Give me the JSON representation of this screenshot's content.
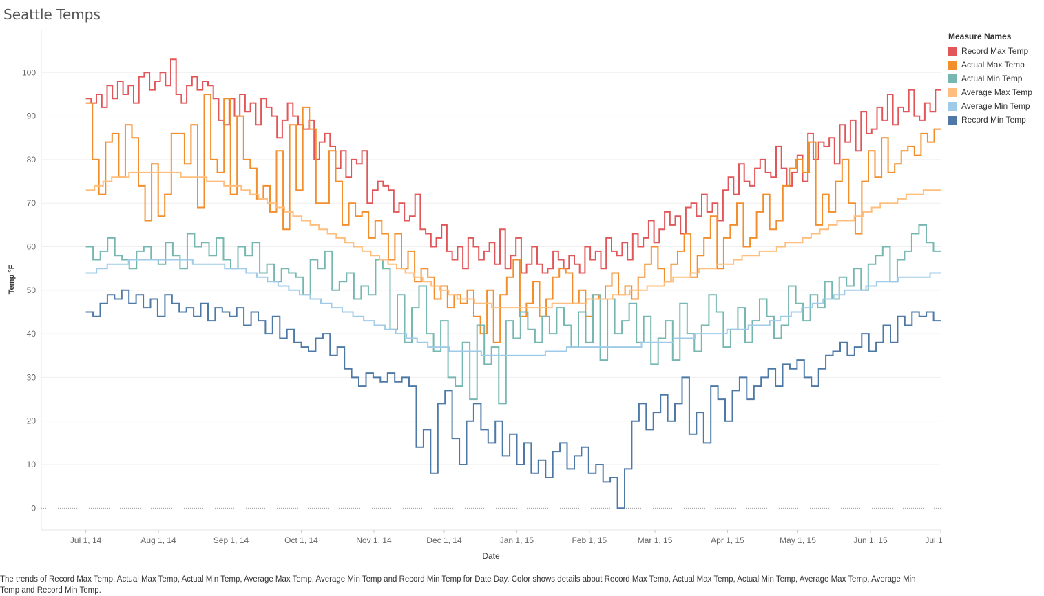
{
  "chart_data": {
    "type": "line",
    "title": "Seattle Temps",
    "xlabel": "Date",
    "ylabel": "Temp °F",
    "ylim": [
      -5,
      110
    ],
    "y_ticks": [
      0,
      10,
      20,
      30,
      40,
      50,
      60,
      70,
      80,
      90,
      100
    ],
    "x_ticks": [
      "Jul 1, 14",
      "Aug 1, 14",
      "Sep 1, 14",
      "Oct 1, 14",
      "Nov 1, 14",
      "Dec 1, 14",
      "Jan 1, 15",
      "Feb 1, 15",
      "Mar 1, 15",
      "Apr 1, 15",
      "May 1, 15",
      "Jun 1, 15",
      "Jul 1, 15"
    ],
    "x_tick_days": [
      0,
      31,
      62,
      92,
      123,
      153,
      184,
      215,
      243,
      274,
      304,
      335,
      365
    ],
    "x_range_days": [
      -19,
      365
    ],
    "step_days": 3,
    "line_style": "step",
    "legend": {
      "title": "Measure Names",
      "position": "right"
    },
    "grid": true,
    "series": [
      {
        "name": "Record Max Temp",
        "color": "#e15759",
        "start_day": 0,
        "values": [
          94,
          93,
          95,
          92,
          97,
          94,
          98,
          95,
          97,
          93,
          99,
          100,
          96,
          98,
          100,
          97,
          103,
          95,
          93,
          97,
          99,
          96,
          98,
          97,
          94,
          89,
          88,
          94,
          90,
          95,
          91,
          93,
          88,
          94,
          92,
          90,
          85,
          89,
          93,
          90,
          88,
          87,
          89,
          80,
          84,
          86,
          83,
          78,
          82,
          76,
          80,
          79,
          82,
          70,
          73,
          75,
          74,
          73,
          68,
          70,
          66,
          67,
          72,
          64,
          63,
          60,
          62,
          65,
          59,
          57,
          60,
          55,
          62,
          60,
          57,
          59,
          61,
          56,
          64,
          55,
          58,
          62,
          54,
          56,
          60,
          56,
          54,
          55,
          59,
          57,
          55,
          58,
          56,
          54,
          60,
          57,
          59,
          55,
          62,
          59,
          58,
          61,
          57,
          63,
          60,
          62,
          66,
          61,
          64,
          68,
          65,
          67,
          63,
          69,
          70,
          67,
          72,
          68,
          70,
          66,
          73,
          76,
          72,
          79,
          75,
          74,
          78,
          80,
          77,
          76,
          83,
          78,
          74,
          77,
          81,
          75,
          86,
          80,
          84,
          83,
          85,
          79,
          88,
          84,
          89,
          82,
          91,
          86,
          87,
          92,
          89,
          95,
          88,
          92,
          91,
          96,
          90,
          89,
          93,
          91,
          96
        ]
      },
      {
        "name": "Actual Max Temp",
        "color": "#f28e2b",
        "start_day": 0,
        "values": [
          93,
          80,
          72,
          84,
          86,
          76,
          88,
          85,
          74,
          66,
          79,
          67,
          72,
          86,
          86,
          79,
          88,
          69,
          95,
          80,
          77,
          94,
          72,
          90,
          80,
          78,
          71,
          74,
          68,
          82,
          64,
          88,
          73,
          92,
          87,
          70,
          70,
          82,
          75,
          65,
          70,
          67,
          68,
          62,
          66,
          63,
          57,
          63,
          55,
          59,
          52,
          55,
          53,
          48,
          51,
          46,
          49,
          47,
          50,
          44,
          40,
          50,
          38,
          49,
          53,
          57,
          44,
          47,
          52,
          44,
          48,
          53,
          55,
          54,
          47,
          50,
          44,
          49,
          48,
          51,
          54,
          49,
          51,
          48,
          53,
          56,
          60,
          55,
          52,
          56,
          59,
          63,
          53,
          58,
          62,
          67,
          55,
          62,
          65,
          70,
          60,
          62,
          68,
          72,
          64,
          66,
          74,
          78,
          80,
          77,
          84,
          65,
          72,
          68,
          75,
          80,
          70,
          63,
          75,
          82,
          76,
          85,
          77,
          79,
          82,
          83,
          81,
          86,
          84,
          87
        ]
      },
      {
        "name": "Actual Min Temp",
        "color": "#76b7b2",
        "start_day": 0,
        "values": [
          60,
          57,
          59,
          62,
          58,
          57,
          55,
          59,
          60,
          57,
          56,
          61,
          58,
          55,
          63,
          60,
          61,
          58,
          62,
          57,
          55,
          60,
          58,
          61,
          54,
          56,
          52,
          55,
          54,
          53,
          49,
          57,
          55,
          59,
          50,
          52,
          54,
          48,
          51,
          49,
          57,
          55,
          41,
          49,
          38,
          46,
          51,
          40,
          36,
          43,
          30,
          28,
          38,
          25,
          42,
          33,
          37,
          24,
          43,
          39,
          45,
          41,
          38,
          44,
          40,
          46,
          42,
          37,
          45,
          38,
          49,
          34,
          48,
          40,
          43,
          47,
          38,
          44,
          33,
          39,
          43,
          34,
          47,
          40,
          36,
          42,
          49,
          45,
          37,
          41,
          46,
          38,
          43,
          48,
          44,
          39,
          42,
          51,
          47,
          43,
          49,
          46,
          52,
          48,
          53,
          51,
          55,
          50,
          56,
          58,
          60,
          52,
          57,
          59,
          63,
          65,
          61,
          59
        ]
      },
      {
        "name": "Average Max Temp",
        "color": "#ffbe7d",
        "start_day": 0,
        "values": [
          73,
          74,
          75,
          76,
          76,
          77,
          77,
          77,
          77,
          77,
          77,
          76,
          76,
          76,
          75,
          75,
          74,
          74,
          73,
          72,
          71,
          70,
          69,
          68,
          67,
          66,
          65,
          64,
          63,
          62,
          61,
          60,
          59,
          58,
          57,
          56,
          55,
          54,
          53,
          52,
          51,
          50,
          49,
          48,
          48,
          47,
          47,
          46,
          46,
          46,
          46,
          46,
          46,
          46,
          47,
          47,
          47,
          47,
          48,
          48,
          48,
          49,
          49,
          50,
          50,
          51,
          51,
          52,
          53,
          53,
          54,
          55,
          55,
          56,
          56,
          57,
          58,
          58,
          59,
          59,
          60,
          61,
          61,
          62,
          63,
          64,
          65,
          66,
          66,
          67,
          68,
          69,
          70,
          70,
          71,
          72,
          72,
          73,
          73
        ]
      },
      {
        "name": "Average Min Temp",
        "color": "#a0cbe8",
        "start_day": 0,
        "values": [
          54,
          55,
          56,
          56,
          57,
          57,
          57,
          57,
          57,
          57,
          56,
          56,
          56,
          55,
          55,
          54,
          53,
          52,
          51,
          50,
          49,
          48,
          47,
          46,
          45,
          44,
          43,
          42,
          41,
          40,
          39,
          38,
          37,
          37,
          36,
          36,
          36,
          35,
          35,
          35,
          35,
          35,
          35,
          36,
          36,
          37,
          37,
          37,
          37,
          37,
          37,
          37,
          38,
          38,
          38,
          39,
          39,
          40,
          40,
          40,
          41,
          41,
          42,
          42,
          43,
          44,
          45,
          46,
          47,
          48,
          49,
          50,
          50,
          51,
          52,
          52,
          53,
          53,
          53,
          54
        ]
      },
      {
        "name": "Record Min Temp",
        "color": "#4e79a7",
        "start_day": 0,
        "values": [
          45,
          44,
          47,
          49,
          48,
          50,
          47,
          49,
          46,
          48,
          44,
          49,
          47,
          45,
          46,
          44,
          47,
          43,
          46,
          45,
          44,
          46,
          42,
          45,
          43,
          40,
          44,
          39,
          41,
          38,
          37,
          36,
          39,
          40,
          35,
          37,
          32,
          30,
          28,
          31,
          30,
          29,
          31,
          29,
          30,
          28,
          14,
          18,
          8,
          24,
          27,
          16,
          10,
          20,
          24,
          18,
          15,
          20,
          12,
          17,
          10,
          15,
          8,
          11,
          7,
          13,
          15,
          9,
          12,
          14,
          8,
          10,
          6,
          7,
          0,
          9,
          20,
          24,
          18,
          22,
          26,
          20,
          24,
          30,
          17,
          22,
          15,
          28,
          25,
          20,
          27,
          30,
          25,
          28,
          30,
          32,
          28,
          33,
          32,
          34,
          30,
          28,
          32,
          35,
          36,
          38,
          35,
          37,
          40,
          36,
          38,
          42,
          38,
          44,
          42,
          45,
          44,
          45,
          43
        ]
      }
    ]
  },
  "caption": "The trends of Record Max Temp, Actual Max Temp, Actual Min Temp, Average Max Temp, Average Min Temp and Record Min Temp for Date Day.  Color shows details about Record Max Temp, Actual Max Temp, Actual Min Temp, Average Max Temp, Average Min Temp and Record Min Temp."
}
